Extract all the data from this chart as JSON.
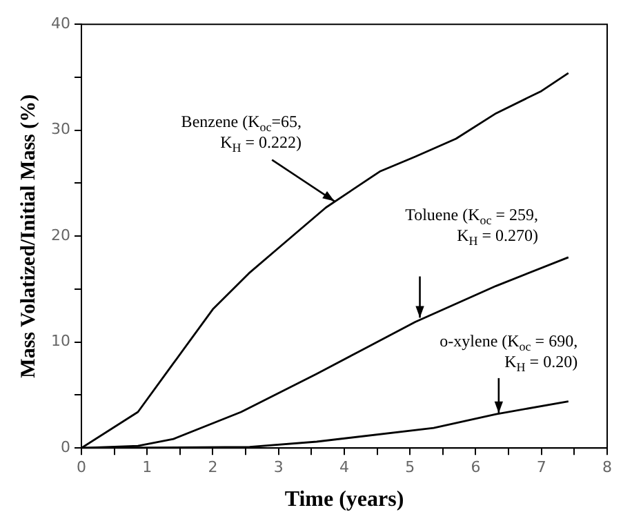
{
  "chart_data": {
    "type": "line",
    "xlabel": "Time (years)",
    "ylabel": "Mass Volatized/Initial Mass (%)",
    "xlim": [
      0,
      8
    ],
    "ylim": [
      0,
      40
    ],
    "xticks": [
      0,
      {
        "value": 0.5,
        "label": null
      },
      1,
      {
        "value": 1.5,
        "label": null
      },
      2,
      {
        "value": 2.5,
        "label": null
      },
      3,
      {
        "value": 3.5,
        "label": null
      },
      4,
      {
        "value": 4.5,
        "label": null
      },
      5,
      {
        "value": 5.5,
        "label": null
      },
      6,
      {
        "value": 6.5,
        "label": null
      },
      7,
      {
        "value": 7.5,
        "label": null
      },
      8
    ],
    "yticks": [
      0,
      {
        "value": 5,
        "label": null
      },
      10,
      {
        "value": 15,
        "label": null
      },
      20,
      {
        "value": 25,
        "label": null
      },
      30,
      {
        "value": 35,
        "label": null
      },
      40
    ],
    "grid": false,
    "legend": false,
    "marker": "none",
    "line_style": "solid",
    "series": [
      {
        "name": "Benzene (K$_{oc}$=65, K$_{H}$ = 0.222)",
        "color": "#000000",
        "x": [
          0,
          0.86,
          1.4,
          2.0,
          2.55,
          3.04,
          3.72,
          4.54,
          5.08,
          5.7,
          6.31,
          7.0,
          7.41
        ],
        "values": [
          0,
          3.4,
          8.0,
          13.1,
          16.5,
          19.1,
          22.7,
          26.1,
          27.5,
          29.2,
          31.6,
          33.7,
          35.4
        ]
      },
      {
        "name": "Toluene (K$_{oc}$ = 259, K$_{H}$ = 0.270)",
        "color": "#000000",
        "x": [
          0,
          0.86,
          1.4,
          2.43,
          3.58,
          5.08,
          6.31,
          7.41
        ],
        "values": [
          0,
          0.2,
          0.85,
          3.4,
          7.0,
          11.9,
          15.3,
          18.0
        ]
      },
      {
        "name": "o-xylene (K$_{oc}$ = 690, K$_{H}$ = 0.20)",
        "color": "#000000",
        "x": [
          0,
          2.56,
          3.58,
          5.36,
          6.31,
          7.41
        ],
        "values": [
          0,
          0.1,
          0.6,
          1.9,
          3.2,
          4.4
        ]
      }
    ]
  }
}
